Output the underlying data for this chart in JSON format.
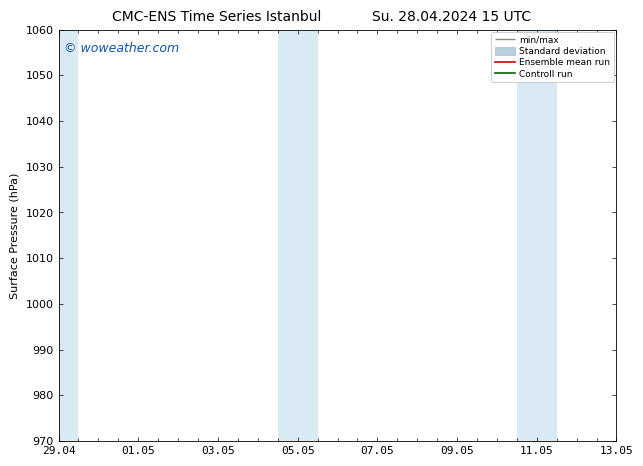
{
  "title_left": "CMC-ENS Time Series Istanbul",
  "title_right": "Su. 28.04.2024 15 UTC",
  "ylabel": "Surface Pressure (hPa)",
  "ylim": [
    970,
    1060
  ],
  "yticks": [
    970,
    980,
    990,
    1000,
    1010,
    1020,
    1030,
    1040,
    1050,
    1060
  ],
  "x_start": 0,
  "x_end": 14,
  "xtick_labels": [
    "29.04",
    "01.05",
    "03.05",
    "05.05",
    "07.05",
    "09.05",
    "11.05",
    "13.05"
  ],
  "xtick_positions": [
    0.0,
    2.0,
    4.0,
    6.0,
    8.0,
    10.0,
    12.0,
    14.0
  ],
  "shaded_bands": [
    {
      "xstart": -0.1,
      "xend": 0.5
    },
    {
      "xstart": 5.5,
      "xend": 6.5
    },
    {
      "xstart": 11.5,
      "xend": 12.5
    }
  ],
  "shaded_color": "#daeaf5",
  "watermark_text": "© woweather.com",
  "watermark_color": "#1155aa",
  "legend_labels": [
    "min/max",
    "Standard deviation",
    "Ensemble mean run",
    "Controll run"
  ],
  "legend_colors_handle": [
    "#888888",
    "#b8cfe0",
    "#cc0000",
    "#006600"
  ],
  "bg_color": "#ffffff",
  "title_fontsize": 10,
  "label_fontsize": 8,
  "tick_fontsize": 8,
  "watermark_fontsize": 9
}
